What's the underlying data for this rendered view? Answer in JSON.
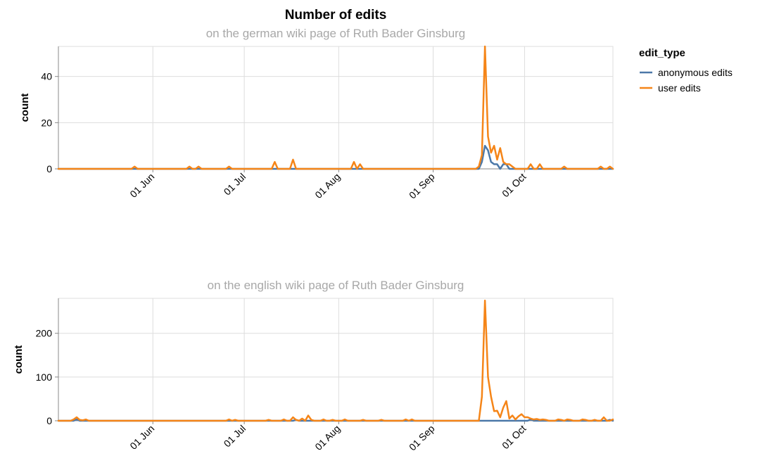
{
  "chart_data": {
    "type": "line",
    "title": "Number of edits",
    "legend": {
      "title": "edit_type",
      "placement": "top-right",
      "entries": [
        {
          "name": "anonymous edits",
          "color": "#4c78a8"
        },
        {
          "name": "user edits",
          "color": "#f58518"
        }
      ]
    },
    "x_axis": {
      "type": "date",
      "range": [
        "2020-05-01",
        "2020-10-30"
      ],
      "ticks": [
        {
          "date": "2020-06-01",
          "label": "01 Jun"
        },
        {
          "date": "2020-07-01",
          "label": "01 Jul"
        },
        {
          "date": "2020-08-01",
          "label": "01 Aug"
        },
        {
          "date": "2020-09-01",
          "label": "01 Sep"
        },
        {
          "date": "2020-10-01",
          "label": "01 Oct"
        }
      ]
    },
    "grid": true,
    "panels": [
      {
        "subtitle": "on the german wiki page of Ruth Bader Ginsburg",
        "ylabel": "count",
        "ylim": [
          0,
          53
        ],
        "yticks": [
          0,
          20,
          40
        ],
        "series": [
          {
            "name": "anonymous edits",
            "color": "#4c78a8",
            "points": [
              [
                "2020-05-01",
                0
              ],
              [
                "2020-05-26",
                0
              ],
              [
                "2020-06-13",
                0
              ],
              [
                "2020-06-16",
                0
              ],
              [
                "2020-06-26",
                0
              ],
              [
                "2020-07-12",
                0
              ],
              [
                "2020-07-18",
                0
              ],
              [
                "2020-08-07",
                0
              ],
              [
                "2020-08-09",
                0
              ],
              [
                "2020-09-16",
                0
              ],
              [
                "2020-09-17",
                3
              ],
              [
                "2020-09-18",
                10
              ],
              [
                "2020-09-19",
                8
              ],
              [
                "2020-09-20",
                3
              ],
              [
                "2020-09-21",
                2
              ],
              [
                "2020-09-22",
                2
              ],
              [
                "2020-09-23",
                0
              ],
              [
                "2020-09-24",
                2
              ],
              [
                "2020-09-25",
                2
              ],
              [
                "2020-09-26",
                0
              ],
              [
                "2020-09-27",
                0
              ],
              [
                "2020-10-30",
                0
              ]
            ]
          },
          {
            "name": "user edits",
            "color": "#f58518",
            "points": [
              [
                "2020-05-01",
                0
              ],
              [
                "2020-05-25",
                0
              ],
              [
                "2020-05-26",
                1
              ],
              [
                "2020-05-27",
                0
              ],
              [
                "2020-06-12",
                0
              ],
              [
                "2020-06-13",
                1
              ],
              [
                "2020-06-14",
                0
              ],
              [
                "2020-06-15",
                0
              ],
              [
                "2020-06-16",
                1
              ],
              [
                "2020-06-17",
                0
              ],
              [
                "2020-06-25",
                0
              ],
              [
                "2020-06-26",
                1
              ],
              [
                "2020-06-27",
                0
              ],
              [
                "2020-07-10",
                0
              ],
              [
                "2020-07-11",
                3
              ],
              [
                "2020-07-12",
                0
              ],
              [
                "2020-07-16",
                0
              ],
              [
                "2020-07-17",
                4
              ],
              [
                "2020-07-18",
                0
              ],
              [
                "2020-08-05",
                0
              ],
              [
                "2020-08-06",
                3
              ],
              [
                "2020-08-07",
                0
              ],
              [
                "2020-08-08",
                2
              ],
              [
                "2020-08-09",
                0
              ],
              [
                "2020-09-15",
                0
              ],
              [
                "2020-09-16",
                1
              ],
              [
                "2020-09-17",
                6
              ],
              [
                "2020-09-18",
                53
              ],
              [
                "2020-09-19",
                14
              ],
              [
                "2020-09-20",
                7
              ],
              [
                "2020-09-21",
                10
              ],
              [
                "2020-09-22",
                4
              ],
              [
                "2020-09-23",
                9
              ],
              [
                "2020-09-24",
                3
              ],
              [
                "2020-09-25",
                2
              ],
              [
                "2020-09-26",
                2
              ],
              [
                "2020-09-27",
                1
              ],
              [
                "2020-09-28",
                0
              ],
              [
                "2020-10-02",
                0
              ],
              [
                "2020-10-03",
                2
              ],
              [
                "2020-10-04",
                0
              ],
              [
                "2020-10-05",
                0
              ],
              [
                "2020-10-06",
                2
              ],
              [
                "2020-10-07",
                0
              ],
              [
                "2020-10-13",
                0
              ],
              [
                "2020-10-14",
                1
              ],
              [
                "2020-10-15",
                0
              ],
              [
                "2020-10-25",
                0
              ],
              [
                "2020-10-26",
                1
              ],
              [
                "2020-10-27",
                0
              ],
              [
                "2020-10-28",
                0
              ],
              [
                "2020-10-29",
                1
              ],
              [
                "2020-10-30",
                0
              ]
            ]
          }
        ]
      },
      {
        "subtitle": "on the english wiki page of Ruth Bader Ginsburg",
        "ylabel": "count",
        "ylim": [
          0,
          280
        ],
        "yticks": [
          0,
          100,
          200
        ],
        "series": [
          {
            "name": "anonymous edits",
            "color": "#4c78a8",
            "points": [
              [
                "2020-05-01",
                0
              ],
              [
                "2020-05-06",
                0
              ],
              [
                "2020-05-07",
                3
              ],
              [
                "2020-05-08",
                0
              ],
              [
                "2020-07-17",
                0
              ],
              [
                "2020-07-18",
                2
              ],
              [
                "2020-07-19",
                0
              ],
              [
                "2020-10-02",
                0
              ],
              [
                "2020-10-03",
                3
              ],
              [
                "2020-10-04",
                0
              ],
              [
                "2020-10-28",
                0
              ],
              [
                "2020-10-29",
                2
              ],
              [
                "2020-10-30",
                0
              ]
            ]
          },
          {
            "name": "user edits",
            "color": "#f58518",
            "points": [
              [
                "2020-05-01",
                0
              ],
              [
                "2020-05-05",
                0
              ],
              [
                "2020-05-06",
                3
              ],
              [
                "2020-05-07",
                8
              ],
              [
                "2020-05-08",
                2
              ],
              [
                "2020-05-09",
                1
              ],
              [
                "2020-05-10",
                3
              ],
              [
                "2020-05-11",
                0
              ],
              [
                "2020-06-25",
                0
              ],
              [
                "2020-06-26",
                3
              ],
              [
                "2020-06-27",
                0
              ],
              [
                "2020-06-28",
                2
              ],
              [
                "2020-06-29",
                0
              ],
              [
                "2020-07-08",
                0
              ],
              [
                "2020-07-09",
                2
              ],
              [
                "2020-07-10",
                0
              ],
              [
                "2020-07-13",
                0
              ],
              [
                "2020-07-14",
                3
              ],
              [
                "2020-07-15",
                0
              ],
              [
                "2020-07-17",
                8
              ],
              [
                "2020-07-18",
                2
              ],
              [
                "2020-07-19",
                0
              ],
              [
                "2020-07-20",
                5
              ],
              [
                "2020-07-21",
                0
              ],
              [
                "2020-07-22",
                12
              ],
              [
                "2020-07-23",
                2
              ],
              [
                "2020-07-24",
                0
              ],
              [
                "2020-07-27",
                3
              ],
              [
                "2020-07-28",
                0
              ],
              [
                "2020-07-30",
                2
              ],
              [
                "2020-07-31",
                0
              ],
              [
                "2020-08-03",
                3
              ],
              [
                "2020-08-04",
                0
              ],
              [
                "2020-08-09",
                2
              ],
              [
                "2020-08-10",
                0
              ],
              [
                "2020-08-15",
                2
              ],
              [
                "2020-08-16",
                0
              ],
              [
                "2020-08-22",
                0
              ],
              [
                "2020-08-23",
                3
              ],
              [
                "2020-08-24",
                0
              ],
              [
                "2020-08-25",
                3
              ],
              [
                "2020-08-26",
                0
              ],
              [
                "2020-09-16",
                0
              ],
              [
                "2020-09-17",
                55
              ],
              [
                "2020-09-18",
                275
              ],
              [
                "2020-09-19",
                100
              ],
              [
                "2020-09-20",
                55
              ],
              [
                "2020-09-21",
                22
              ],
              [
                "2020-09-22",
                23
              ],
              [
                "2020-09-23",
                8
              ],
              [
                "2020-09-24",
                30
              ],
              [
                "2020-09-25",
                45
              ],
              [
                "2020-09-26",
                5
              ],
              [
                "2020-09-27",
                12
              ],
              [
                "2020-09-28",
                3
              ],
              [
                "2020-09-29",
                10
              ],
              [
                "2020-09-30",
                15
              ],
              [
                "2020-10-01",
                8
              ],
              [
                "2020-10-02",
                8
              ],
              [
                "2020-10-03",
                5
              ],
              [
                "2020-10-04",
                3
              ],
              [
                "2020-10-05",
                4
              ],
              [
                "2020-10-06",
                2
              ],
              [
                "2020-10-07",
                3
              ],
              [
                "2020-10-08",
                2
              ],
              [
                "2020-10-10",
                0
              ],
              [
                "2020-10-12",
                3
              ],
              [
                "2020-10-13",
                2
              ],
              [
                "2020-10-15",
                3
              ],
              [
                "2020-10-16",
                2
              ],
              [
                "2020-10-18",
                0
              ],
              [
                "2020-10-20",
                3
              ],
              [
                "2020-10-21",
                2
              ],
              [
                "2020-10-22",
                0
              ],
              [
                "2020-10-24",
                2
              ],
              [
                "2020-10-25",
                0
              ],
              [
                "2020-10-27",
                8
              ],
              [
                "2020-10-28",
                0
              ],
              [
                "2020-10-30",
                3
              ]
            ]
          }
        ]
      }
    ]
  }
}
